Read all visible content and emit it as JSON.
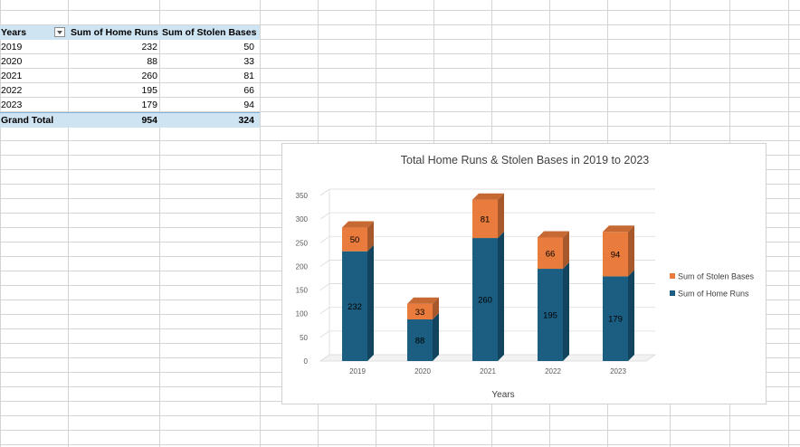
{
  "pivot": {
    "headers": [
      "Years",
      "Sum of Home Runs",
      "Sum of  Stolen Bases"
    ],
    "rows": [
      {
        "year": "2019",
        "hr": "232",
        "sb": "50"
      },
      {
        "year": "2020",
        "hr": "88",
        "sb": "33"
      },
      {
        "year": "2021",
        "hr": "260",
        "sb": "81"
      },
      {
        "year": "2022",
        "hr": "195",
        "sb": "66"
      },
      {
        "year": "2023",
        "hr": "179",
        "sb": "94"
      }
    ],
    "total": {
      "label": "Grand Total",
      "hr": "954",
      "sb": "324"
    }
  },
  "chart_data": {
    "type": "bar",
    "stacked": true,
    "title": "Total Home Runs & Stolen Bases in 2019 to 2023",
    "xlabel": "Years",
    "ylabel": "",
    "categories": [
      "2019",
      "2020",
      "2021",
      "2022",
      "2023"
    ],
    "series": [
      {
        "name": "Sum of Home Runs",
        "values": [
          232,
          88,
          260,
          195,
          179
        ],
        "color": "#1b5e82"
      },
      {
        "name": "Sum of  Stolen Bases",
        "values": [
          50,
          33,
          81,
          66,
          94
        ],
        "color": "#e97b3c"
      }
    ],
    "legend_order": [
      1,
      0
    ],
    "ylim": [
      0,
      350
    ],
    "yticks": [
      0,
      50,
      100,
      150,
      200,
      250,
      300,
      350
    ],
    "grid": true,
    "legend_position": "right"
  }
}
